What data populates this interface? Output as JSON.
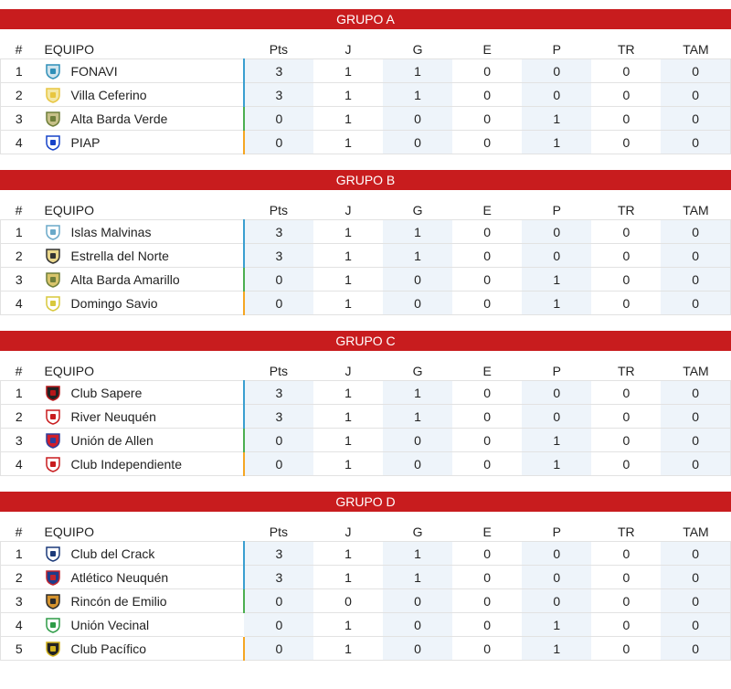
{
  "headers": {
    "pos": "#",
    "team": "EQUIPO",
    "pts": "Pts",
    "j": "J",
    "g": "G",
    "e": "E",
    "p": "P",
    "tr": "TR",
    "tam": "TAM"
  },
  "colors": {
    "header_red": "#c81c1e",
    "blue": "#3a9fd0",
    "green": "#4caf50",
    "orange": "#f5a623",
    "highlight": "#eef4fa"
  },
  "groups": [
    {
      "title": "GRUPO A",
      "rows": [
        {
          "pos": "1",
          "team": "FONAVI",
          "logo": "shield-fonavi-icon",
          "pts": "3",
          "j": "1",
          "g": "1",
          "e": "0",
          "p": "0",
          "tr": "0",
          "tam": "0",
          "zone": "blue"
        },
        {
          "pos": "2",
          "team": "Villa Ceferino",
          "logo": "shield-villa-ceferino-icon",
          "pts": "3",
          "j": "1",
          "g": "1",
          "e": "0",
          "p": "0",
          "tr": "0",
          "tam": "0",
          "zone": "blue"
        },
        {
          "pos": "3",
          "team": "Alta Barda Verde",
          "logo": "shield-alta-barda-verde-icon",
          "pts": "0",
          "j": "1",
          "g": "0",
          "e": "0",
          "p": "1",
          "tr": "0",
          "tam": "0",
          "zone": "green"
        },
        {
          "pos": "4",
          "team": "PIAP",
          "logo": "shield-piap-icon",
          "pts": "0",
          "j": "1",
          "g": "0",
          "e": "0",
          "p": "1",
          "tr": "0",
          "tam": "0",
          "zone": "orange"
        }
      ]
    },
    {
      "title": "GRUPO B",
      "rows": [
        {
          "pos": "1",
          "team": "Islas Malvinas",
          "logo": "shield-islas-malvinas-icon",
          "pts": "3",
          "j": "1",
          "g": "1",
          "e": "0",
          "p": "0",
          "tr": "0",
          "tam": "0",
          "zone": "blue"
        },
        {
          "pos": "2",
          "team": "Estrella del Norte",
          "logo": "shield-estrella-del-norte-icon",
          "pts": "3",
          "j": "1",
          "g": "1",
          "e": "0",
          "p": "0",
          "tr": "0",
          "tam": "0",
          "zone": "blue"
        },
        {
          "pos": "3",
          "team": "Alta Barda Amarillo",
          "logo": "shield-alta-barda-amarillo-icon",
          "pts": "0",
          "j": "1",
          "g": "0",
          "e": "0",
          "p": "1",
          "tr": "0",
          "tam": "0",
          "zone": "green"
        },
        {
          "pos": "4",
          "team": "Domingo Savio",
          "logo": "shield-domingo-savio-icon",
          "pts": "0",
          "j": "1",
          "g": "0",
          "e": "0",
          "p": "1",
          "tr": "0",
          "tam": "0",
          "zone": "orange"
        }
      ]
    },
    {
      "title": "GRUPO C",
      "rows": [
        {
          "pos": "1",
          "team": "Club Sapere",
          "logo": "shield-club-sapere-icon",
          "pts": "3",
          "j": "1",
          "g": "1",
          "e": "0",
          "p": "0",
          "tr": "0",
          "tam": "0",
          "zone": "blue"
        },
        {
          "pos": "2",
          "team": "River Neuquén",
          "logo": "shield-river-neuquen-icon",
          "pts": "3",
          "j": "1",
          "g": "1",
          "e": "0",
          "p": "0",
          "tr": "0",
          "tam": "0",
          "zone": "blue"
        },
        {
          "pos": "3",
          "team": "Unión de Allen",
          "logo": "shield-union-de-allen-icon",
          "pts": "0",
          "j": "1",
          "g": "0",
          "e": "0",
          "p": "1",
          "tr": "0",
          "tam": "0",
          "zone": "green"
        },
        {
          "pos": "4",
          "team": "Club Independiente",
          "logo": "shield-club-independiente-icon",
          "pts": "0",
          "j": "1",
          "g": "0",
          "e": "0",
          "p": "1",
          "tr": "0",
          "tam": "0",
          "zone": "orange"
        }
      ]
    },
    {
      "title": "GRUPO D",
      "rows": [
        {
          "pos": "1",
          "team": "Club del Crack",
          "logo": "shield-club-del-crack-icon",
          "pts": "3",
          "j": "1",
          "g": "1",
          "e": "0",
          "p": "0",
          "tr": "0",
          "tam": "0",
          "zone": "blue"
        },
        {
          "pos": "2",
          "team": "Atlético Neuquén",
          "logo": "shield-atletico-neuquen-icon",
          "pts": "3",
          "j": "1",
          "g": "1",
          "e": "0",
          "p": "0",
          "tr": "0",
          "tam": "0",
          "zone": "blue"
        },
        {
          "pos": "3",
          "team": "Rincón de Emilio",
          "logo": "shield-rincon-de-emilio-icon",
          "pts": "0",
          "j": "0",
          "g": "0",
          "e": "0",
          "p": "0",
          "tr": "0",
          "tam": "0",
          "zone": "green"
        },
        {
          "pos": "4",
          "team": "Unión Vecinal",
          "logo": "shield-union-vecinal-icon",
          "pts": "0",
          "j": "1",
          "g": "0",
          "e": "0",
          "p": "1",
          "tr": "0",
          "tam": "0",
          "zone": "none"
        },
        {
          "pos": "5",
          "team": "Club Pacífico",
          "logo": "shield-club-pacifico-icon",
          "pts": "0",
          "j": "1",
          "g": "0",
          "e": "0",
          "p": "1",
          "tr": "0",
          "tam": "0",
          "zone": "orange"
        }
      ]
    }
  ]
}
